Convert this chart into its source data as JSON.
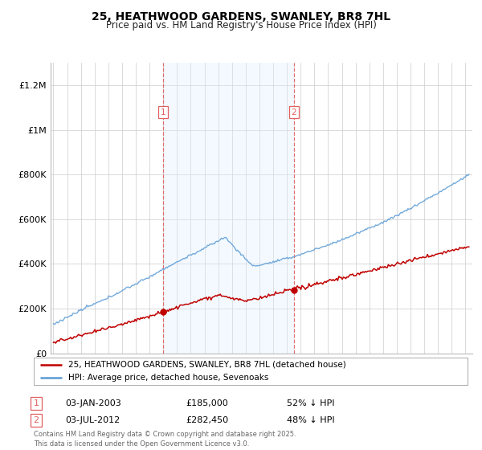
{
  "title": "25, HEATHWOOD GARDENS, SWANLEY, BR8 7HL",
  "subtitle": "Price paid vs. HM Land Registry's House Price Index (HPI)",
  "hpi_label": "HPI: Average price, detached house, Sevenoaks",
  "property_label": "25, HEATHWOOD GARDENS, SWANLEY, BR8 7HL (detached house)",
  "sale1_date": "03-JAN-2003",
  "sale1_price": 185000,
  "sale1_price_str": "£185,000",
  "sale1_pct": "52% ↓ HPI",
  "sale2_date": "03-JUL-2012",
  "sale2_price": 282450,
  "sale2_price_str": "£282,450",
  "sale2_pct": "48% ↓ HPI",
  "sale1_year": 2003.0,
  "sale2_year": 2012.5,
  "hpi_color": "#5b9bd5",
  "property_color": "#c00000",
  "shaded_color": "#ddeeff",
  "vline_color": "#e06060",
  "marker_color": "#c00000",
  "background_color": "#ffffff",
  "ylim": [
    0,
    1300000
  ],
  "xlim_start": 1994.8,
  "xlim_end": 2025.5,
  "footer": "Contains HM Land Registry data © Crown copyright and database right 2025.\nThis data is licensed under the Open Government Licence v3.0.",
  "yticks": [
    0,
    200000,
    400000,
    600000,
    800000,
    1000000,
    1200000
  ],
  "ytick_labels": [
    "£0",
    "£200K",
    "£400K",
    "£600K",
    "£800K",
    "£1M",
    "£1.2M"
  ],
  "xticks": [
    1995,
    1996,
    1997,
    1998,
    1999,
    2000,
    2001,
    2002,
    2003,
    2004,
    2005,
    2006,
    2007,
    2008,
    2009,
    2010,
    2011,
    2012,
    2013,
    2014,
    2015,
    2016,
    2017,
    2018,
    2019,
    2020,
    2021,
    2022,
    2023,
    2024,
    2025
  ]
}
